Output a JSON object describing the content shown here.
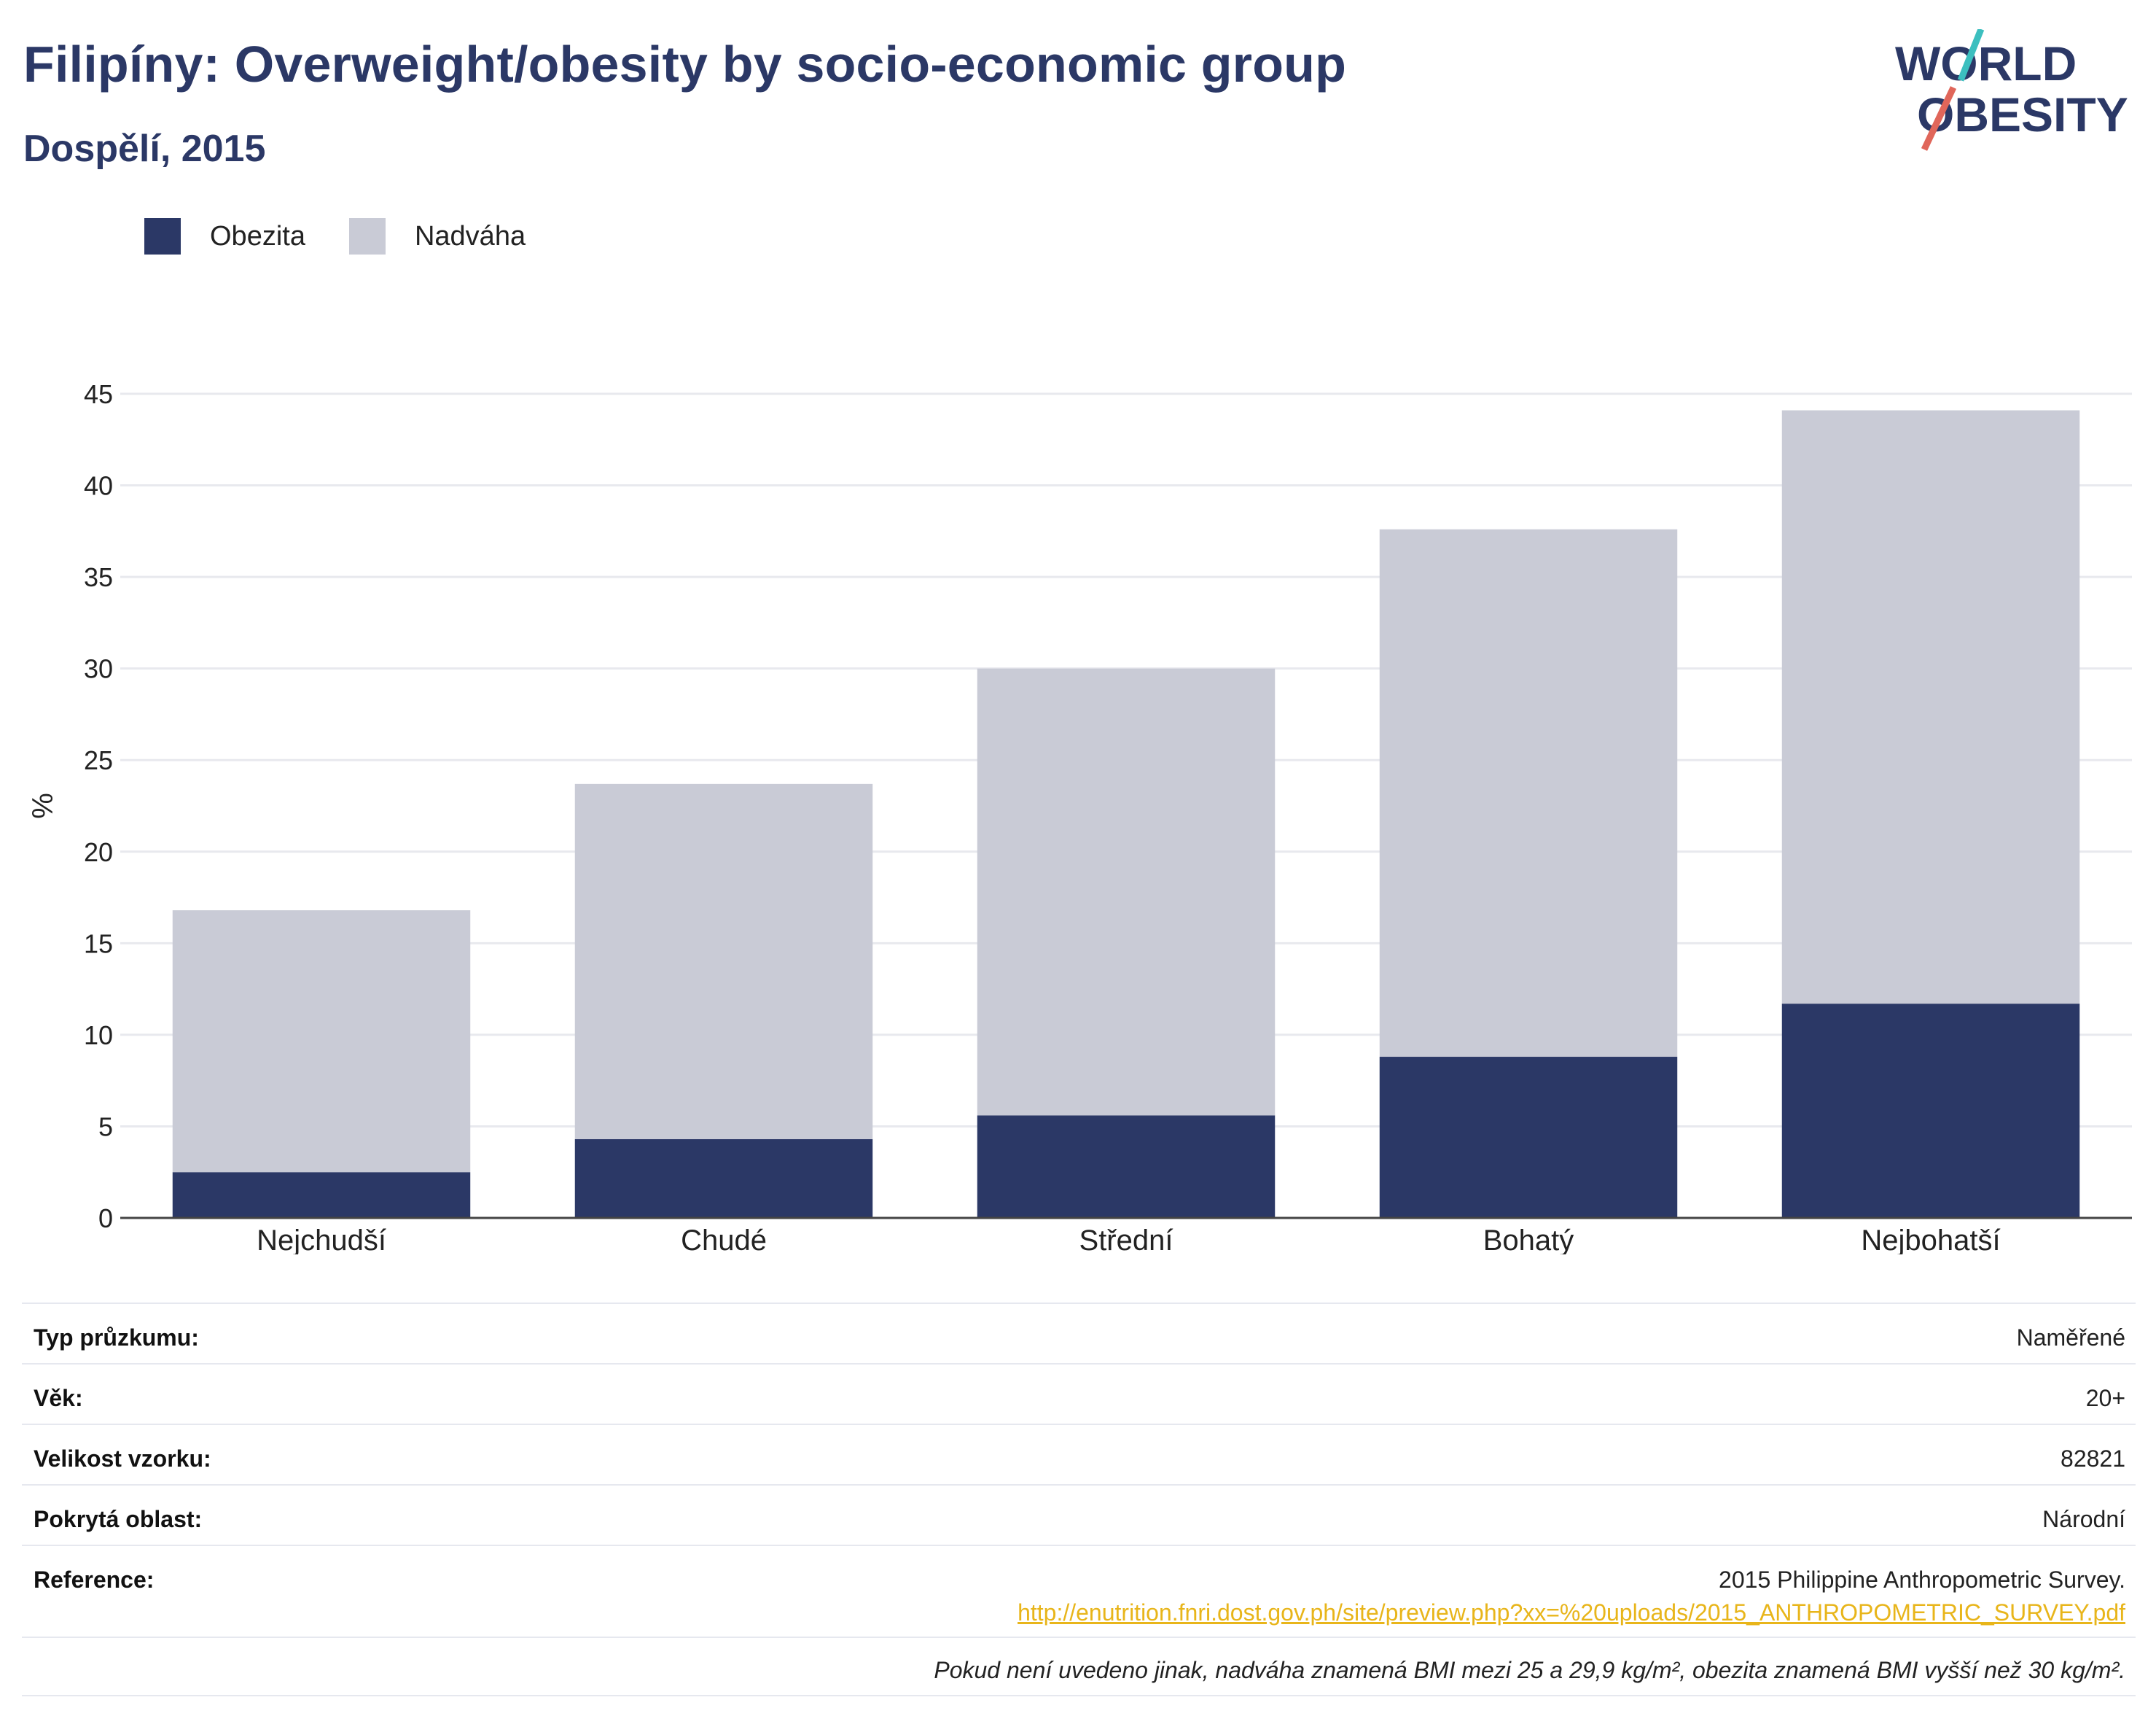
{
  "header": {
    "title": "Filipíny: Overweight/obesity by socio-economic group",
    "subtitle": "Dospělí, 2015"
  },
  "logo": {
    "line1": "WORLD",
    "line2": "OBESITY",
    "slash_colors": [
      "#3cbfbf",
      "#e0665a"
    ],
    "text_color": "#2b3866"
  },
  "legend": {
    "items": [
      {
        "label": "Obezita",
        "color": "#2b3866"
      },
      {
        "label": "Nadváha",
        "color": "#c9cbd6"
      }
    ]
  },
  "chart_data": {
    "type": "bar",
    "stacked": true,
    "categories": [
      "Nejchudší",
      "Chudé",
      "Střední",
      "Bohatý",
      "Nejbohatší"
    ],
    "series": [
      {
        "name": "Obezita",
        "color": "#2b3866",
        "values": [
          2.5,
          4.3,
          5.6,
          8.8,
          11.7
        ]
      },
      {
        "name": "Nadváha",
        "color": "#c9cbd6",
        "values": [
          14.3,
          19.4,
          24.4,
          28.8,
          32.4
        ]
      }
    ],
    "ylabel": "%",
    "ylim": [
      0,
      45
    ],
    "yticks": [
      0,
      5,
      10,
      15,
      20,
      25,
      30,
      35,
      40,
      45
    ],
    "grid": true,
    "legend_position": "top-left"
  },
  "info": {
    "rows": [
      {
        "label": "Typ průzkumu:",
        "value": "Naměřené"
      },
      {
        "label": "Věk:",
        "value": "20+"
      },
      {
        "label": "Velikost vzorku:",
        "value": "82821"
      },
      {
        "label": "Pokrytá oblast:",
        "value": "Národní"
      }
    ],
    "reference": {
      "label": "Reference:",
      "text": "2015 Philippine Anthropometric Survey.",
      "link": "http://enutrition.fnri.dost.gov.ph/site/preview.php?xx=%20uploads/2015_ANTHROPOMETRIC_SURVEY.pdf"
    },
    "footnote": "Pokud není uvedeno jinak, nadváha znamená BMI mezi 25 a 29,9 kg/m², obezita znamená BMI vyšší než 30 kg/m²."
  }
}
